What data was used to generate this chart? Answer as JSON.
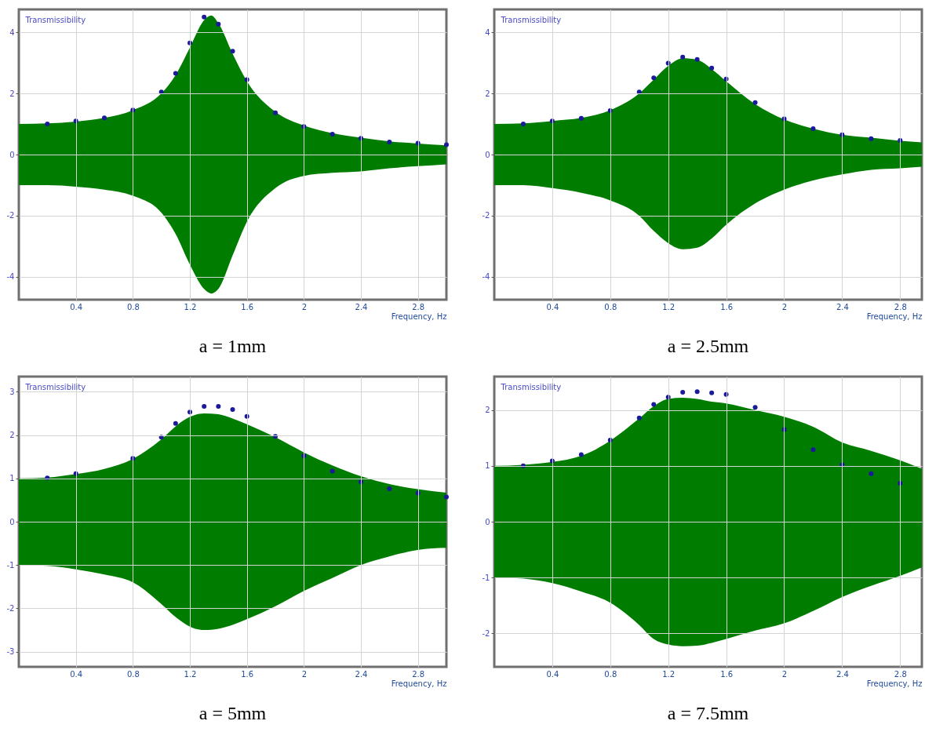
{
  "chart_data": [
    {
      "type": "area",
      "title": "a = 1mm",
      "xlabel": "Frequency, Hz",
      "ylabel": "Transmissibility",
      "xlim": [
        0,
        3
      ],
      "ylim": [
        -4.75,
        4.75
      ],
      "xticks": [
        0.4,
        0.8,
        1.2,
        1.6,
        2,
        2.4,
        2.8
      ],
      "yticks": [
        -4,
        -2,
        0,
        2,
        4
      ],
      "grid": true,
      "series": [
        {
          "color": "#007d00",
          "x": [
            0,
            0.2,
            0.4,
            0.6,
            0.8,
            1.0,
            1.1,
            1.2,
            1.3,
            1.35,
            1.4,
            1.5,
            1.6,
            1.8,
            2.0,
            2.2,
            2.4,
            2.6,
            2.8,
            3.0
          ],
          "values": [
            1.0,
            1.02,
            1.08,
            1.2,
            1.45,
            2.0,
            2.6,
            3.5,
            4.4,
            4.55,
            4.3,
            3.3,
            2.4,
            1.4,
            0.95,
            0.7,
            0.55,
            0.43,
            0.36,
            0.3
          ]
        },
        {
          "color": "#007d00",
          "x": [
            0,
            0.2,
            0.4,
            0.6,
            0.8,
            1.0,
            1.1,
            1.2,
            1.3,
            1.35,
            1.4,
            1.5,
            1.6,
            1.8,
            2.0,
            2.2,
            2.4,
            2.6,
            2.8,
            3.0
          ],
          "values": [
            -1.0,
            -1.0,
            -1.05,
            -1.15,
            -1.35,
            -1.9,
            -2.6,
            -3.6,
            -4.4,
            -4.55,
            -4.4,
            -3.3,
            -2.2,
            -1.1,
            -0.7,
            -0.6,
            -0.55,
            -0.45,
            -0.38,
            -0.32
          ]
        },
        {
          "type": "scatter",
          "marker": "circle",
          "color": "#1a1a9a",
          "x": [
            0.2,
            0.4,
            0.6,
            0.8,
            1.0,
            1.1,
            1.2,
            1.3,
            1.4,
            1.5,
            1.6,
            1.8,
            2.0,
            2.2,
            2.4,
            2.6,
            2.8,
            3.0
          ],
          "values": [
            1.0,
            1.1,
            1.2,
            1.46,
            2.05,
            2.66,
            3.65,
            4.5,
            4.27,
            3.38,
            2.45,
            1.37,
            0.92,
            0.67,
            0.53,
            0.41,
            0.37,
            0.32
          ]
        }
      ]
    },
    {
      "type": "area",
      "title": "a = 2.5mm",
      "xlabel": "Frequency, Hz",
      "ylabel": "Transmissibility",
      "xlim": [
        0,
        2.95
      ],
      "ylim": [
        -4.75,
        4.75
      ],
      "xticks": [
        0.4,
        0.8,
        1.2,
        1.6,
        2,
        2.4,
        2.8
      ],
      "yticks": [
        -4,
        -2,
        0,
        2,
        4
      ],
      "grid": true,
      "series": [
        {
          "color": "#007d00",
          "x": [
            0,
            0.2,
            0.4,
            0.6,
            0.8,
            1.0,
            1.1,
            1.2,
            1.3,
            1.4,
            1.5,
            1.6,
            1.8,
            2.0,
            2.2,
            2.4,
            2.6,
            2.8,
            2.95
          ],
          "values": [
            1.0,
            1.02,
            1.1,
            1.2,
            1.45,
            2.0,
            2.45,
            2.9,
            3.15,
            3.1,
            2.8,
            2.4,
            1.65,
            1.15,
            0.85,
            0.65,
            0.55,
            0.45,
            0.4
          ]
        },
        {
          "color": "#007d00",
          "x": [
            0,
            0.2,
            0.4,
            0.6,
            0.8,
            1.0,
            1.1,
            1.2,
            1.3,
            1.4,
            1.5,
            1.6,
            1.8,
            2.0,
            2.2,
            2.4,
            2.6,
            2.8,
            2.95
          ],
          "values": [
            -1.0,
            -1.0,
            -1.1,
            -1.25,
            -1.5,
            -2.0,
            -2.5,
            -2.9,
            -3.1,
            -3.05,
            -2.75,
            -2.3,
            -1.6,
            -1.15,
            -0.85,
            -0.65,
            -0.5,
            -0.45,
            -0.4
          ]
        },
        {
          "type": "scatter",
          "marker": "circle",
          "color": "#1a1a9a",
          "x": [
            0.2,
            0.4,
            0.6,
            0.8,
            1.0,
            1.1,
            1.2,
            1.3,
            1.4,
            1.5,
            1.6,
            1.8,
            2.0,
            2.2,
            2.4,
            2.6,
            2.8
          ],
          "values": [
            1.0,
            1.1,
            1.19,
            1.44,
            2.05,
            2.51,
            2.99,
            3.19,
            3.11,
            2.83,
            2.47,
            1.7,
            1.17,
            0.85,
            0.65,
            0.52,
            0.46
          ]
        }
      ]
    },
    {
      "type": "area",
      "title": "a = 5mm",
      "xlabel": "Frequency, Hz",
      "ylabel": "Transmissibility",
      "xlim": [
        0,
        3
      ],
      "ylim": [
        -3.35,
        3.35
      ],
      "xticks": [
        0.4,
        0.8,
        1.2,
        1.6,
        2,
        2.4,
        2.8
      ],
      "yticks": [
        -3,
        -2,
        -1,
        0,
        1,
        2,
        3
      ],
      "grid": true,
      "series": [
        {
          "color": "#007d00",
          "x": [
            0,
            0.2,
            0.4,
            0.6,
            0.8,
            1.0,
            1.1,
            1.2,
            1.3,
            1.4,
            1.5,
            1.6,
            1.8,
            2.0,
            2.2,
            2.4,
            2.6,
            2.8,
            3.0
          ],
          "values": [
            1.0,
            1.02,
            1.1,
            1.22,
            1.45,
            1.9,
            2.2,
            2.42,
            2.5,
            2.48,
            2.38,
            2.25,
            1.95,
            1.6,
            1.3,
            1.05,
            0.87,
            0.75,
            0.67
          ]
        },
        {
          "color": "#007d00",
          "x": [
            0,
            0.2,
            0.4,
            0.6,
            0.8,
            1.0,
            1.1,
            1.2,
            1.3,
            1.4,
            1.5,
            1.6,
            1.8,
            2.0,
            2.2,
            2.4,
            2.6,
            2.8,
            3.0
          ],
          "values": [
            -1.0,
            -1.02,
            -1.1,
            -1.22,
            -1.4,
            -1.9,
            -2.2,
            -2.42,
            -2.5,
            -2.47,
            -2.38,
            -2.25,
            -1.95,
            -1.6,
            -1.3,
            -1.0,
            -0.8,
            -0.65,
            -0.6
          ]
        },
        {
          "type": "scatter",
          "marker": "circle",
          "color": "#1a1a9a",
          "x": [
            0.2,
            0.4,
            0.8,
            1.0,
            1.1,
            1.2,
            1.3,
            1.4,
            1.5,
            1.6,
            1.8,
            2.0,
            2.2,
            2.4,
            2.6,
            2.8,
            3.0
          ],
          "values": [
            1.01,
            1.11,
            1.46,
            1.95,
            2.27,
            2.53,
            2.66,
            2.66,
            2.59,
            2.43,
            1.97,
            1.52,
            1.17,
            0.92,
            0.76,
            0.66,
            0.57
          ]
        }
      ]
    },
    {
      "type": "area",
      "title": "a = 7.5mm",
      "xlabel": "Frequency, Hz",
      "ylabel": "Transmissibility",
      "xlim": [
        0,
        2.95
      ],
      "ylim": [
        -2.6,
        2.6
      ],
      "xticks": [
        0.4,
        0.8,
        1.2,
        1.6,
        2,
        2.4,
        2.8
      ],
      "yticks": [
        -2,
        -1,
        0,
        1,
        2
      ],
      "grid": true,
      "series": [
        {
          "color": "#007d00",
          "x": [
            0,
            0.2,
            0.4,
            0.6,
            0.8,
            1.0,
            1.1,
            1.2,
            1.3,
            1.4,
            1.5,
            1.6,
            1.8,
            2.0,
            2.2,
            2.4,
            2.6,
            2.8,
            2.95
          ],
          "values": [
            1.0,
            1.02,
            1.07,
            1.18,
            1.45,
            1.85,
            2.07,
            2.2,
            2.22,
            2.2,
            2.15,
            2.12,
            2.0,
            1.88,
            1.7,
            1.42,
            1.27,
            1.1,
            0.95
          ]
        },
        {
          "color": "#007d00",
          "x": [
            0,
            0.2,
            0.4,
            0.6,
            0.8,
            1.0,
            1.1,
            1.2,
            1.3,
            1.4,
            1.5,
            1.6,
            1.8,
            2.0,
            2.2,
            2.4,
            2.6,
            2.8,
            2.95
          ],
          "values": [
            -1.0,
            -1.02,
            -1.1,
            -1.25,
            -1.45,
            -1.85,
            -2.1,
            -2.2,
            -2.23,
            -2.22,
            -2.17,
            -2.1,
            -1.95,
            -1.82,
            -1.6,
            -1.35,
            -1.15,
            -0.97,
            -0.82
          ]
        },
        {
          "type": "scatter",
          "marker": "circle",
          "color": "#1a1a9a",
          "x": [
            0.2,
            0.4,
            0.6,
            0.8,
            1.0,
            1.1,
            1.2,
            1.3,
            1.4,
            1.5,
            1.6,
            1.8,
            2.0,
            2.2,
            2.4,
            2.6,
            2.8
          ],
          "values": [
            1.0,
            1.09,
            1.2,
            1.46,
            1.86,
            2.1,
            2.23,
            2.32,
            2.33,
            2.31,
            2.28,
            2.05,
            1.65,
            1.29,
            1.02,
            0.86,
            0.69
          ]
        }
      ]
    }
  ]
}
